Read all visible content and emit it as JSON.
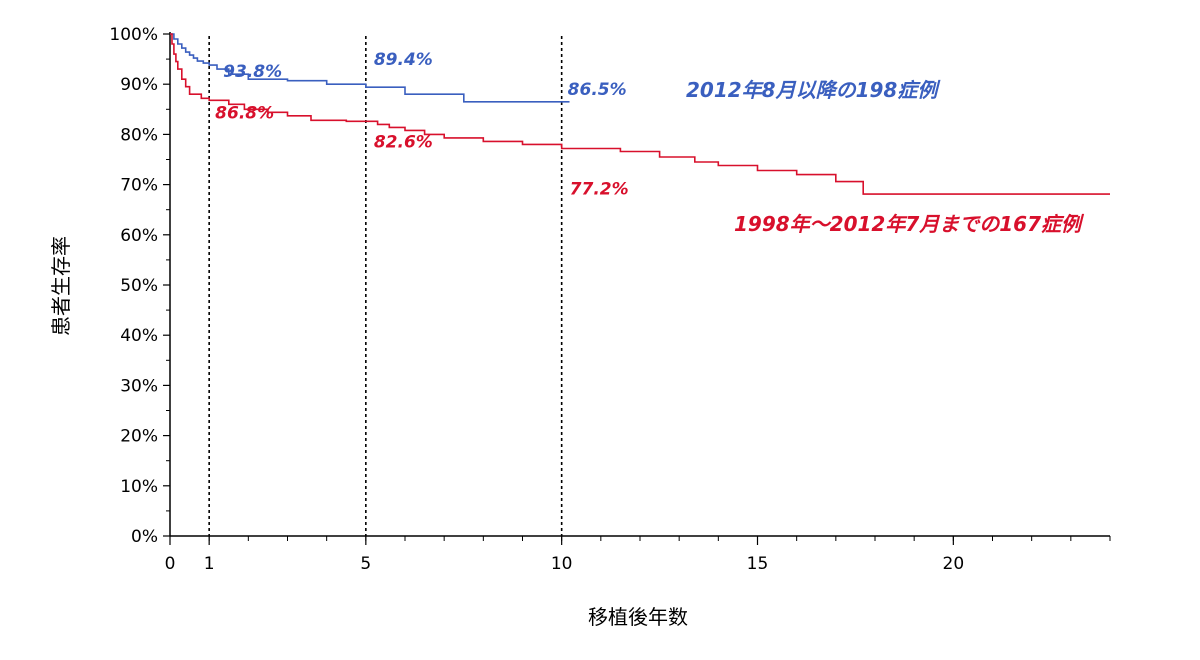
{
  "chart_data": {
    "type": "line",
    "title": "",
    "xlabel": "移植後年数",
    "ylabel": "患者生存率",
    "xlim": [
      0,
      24
    ],
    "ylim": [
      0,
      100
    ],
    "x_ticks": [
      {
        "value": 0,
        "label": "0"
      },
      {
        "value": 1,
        "label": "1"
      },
      {
        "value": 5,
        "label": "5"
      },
      {
        "value": 10,
        "label": "10"
      },
      {
        "value": 15,
        "label": "15"
      },
      {
        "value": 20,
        "label": "20"
      }
    ],
    "y_ticks": [
      {
        "value": 0,
        "label": "0%"
      },
      {
        "value": 10,
        "label": "10%"
      },
      {
        "value": 20,
        "label": "20%"
      },
      {
        "value": 30,
        "label": "30%"
      },
      {
        "value": 40,
        "label": "40%"
      },
      {
        "value": 50,
        "label": "50%"
      },
      {
        "value": 60,
        "label": "60%"
      },
      {
        "value": 70,
        "label": "70%"
      },
      {
        "value": 80,
        "label": "80%"
      },
      {
        "value": 90,
        "label": "90%"
      },
      {
        "value": 100,
        "label": "100%"
      }
    ],
    "reference_lines_x": [
      1,
      5,
      10
    ],
    "grid": false,
    "series": [
      {
        "name": "2012年8月以降の198症例",
        "color": "#3a5fbf",
        "step": true,
        "x": [
          0,
          0.1,
          0.2,
          0.3,
          0.4,
          0.5,
          0.6,
          0.7,
          0.85,
          1.0,
          1.2,
          1.5,
          2.0,
          3.0,
          4.0,
          5.0,
          6.0,
          7.5,
          10.2
        ],
        "y": [
          100,
          99.0,
          98.0,
          97.2,
          96.4,
          95.8,
          95.2,
          94.6,
          94.2,
          93.8,
          93.0,
          92.0,
          91.0,
          90.7,
          90.0,
          89.4,
          88.0,
          86.5,
          86.5
        ]
      },
      {
        "name": "1998年〜2012年7月までの167症例",
        "color": "#d8102c",
        "step": true,
        "x": [
          0,
          0.05,
          0.1,
          0.15,
          0.2,
          0.3,
          0.4,
          0.5,
          0.8,
          1.0,
          1.5,
          1.9,
          2.5,
          3.0,
          3.6,
          4.5,
          5.0,
          5.3,
          5.6,
          6.0,
          6.5,
          7.0,
          8.0,
          9.0,
          10.0,
          11.5,
          12.5,
          13.4,
          14.0,
          15.0,
          16.0,
          17.0,
          17.7,
          24.0
        ],
        "y": [
          100,
          98.0,
          96.0,
          94.5,
          93.0,
          91.0,
          89.5,
          88.0,
          87.2,
          86.8,
          86.0,
          85.0,
          84.4,
          83.7,
          82.8,
          82.6,
          82.6,
          82.0,
          81.4,
          80.8,
          80.0,
          79.3,
          78.6,
          78.0,
          77.2,
          76.6,
          75.5,
          74.5,
          73.8,
          72.8,
          72.0,
          70.6,
          68.1,
          68.1
        ]
      }
    ],
    "annotations": [
      {
        "text": "93.8%",
        "series_index": 0,
        "x": 1,
        "y": 93.8
      },
      {
        "text": "89.4%",
        "series_index": 0,
        "x": 5,
        "y": 89.4
      },
      {
        "text": "86.5%",
        "series_index": 0,
        "x": 10,
        "y": 86.5
      },
      {
        "text": "86.8%",
        "series_index": 1,
        "x": 1,
        "y": 86.8
      },
      {
        "text": "82.6%",
        "series_index": 1,
        "x": 5,
        "y": 82.6
      },
      {
        "text": "77.2%",
        "series_index": 1,
        "x": 10,
        "y": 77.2
      }
    ],
    "series_labels": [
      {
        "text": "2012年8月以降の198症例",
        "series_index": 0
      },
      {
        "text": "1998年〜2012年7月までの167症例",
        "series_index": 1
      }
    ]
  }
}
